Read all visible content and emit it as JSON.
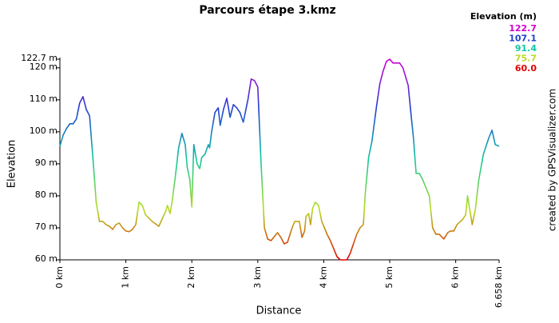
{
  "chart_data": {
    "type": "line",
    "title": "Parcours étape 3.kmz",
    "x_label": "Distance",
    "y_label": "Elevation",
    "credit": "created by GPSVisualizer.com",
    "xlim": [
      0,
      6.658
    ],
    "ylim": [
      60,
      122.7
    ],
    "xticks": [
      {
        "value": 0,
        "label": "0 km"
      },
      {
        "value": 1,
        "label": "1 km"
      },
      {
        "value": 2,
        "label": "2 km"
      },
      {
        "value": 3,
        "label": "3 km"
      },
      {
        "value": 4,
        "label": "4 km"
      },
      {
        "value": 5,
        "label": "5 km"
      },
      {
        "value": 6,
        "label": "6 km"
      },
      {
        "value": 6.658,
        "label": "6.658 km"
      }
    ],
    "yticks": [
      {
        "value": 60,
        "label": "60 m"
      },
      {
        "value": 70,
        "label": "70 m"
      },
      {
        "value": 80,
        "label": "80 m"
      },
      {
        "value": 90,
        "label": "90 m"
      },
      {
        "value": 100,
        "label": "100 m"
      },
      {
        "value": 110,
        "label": "110 m"
      },
      {
        "value": 120,
        "label": "120 m"
      },
      {
        "value": 122.7,
        "label": "122.7 m"
      }
    ],
    "legend": {
      "title": "Elevation (m)",
      "entries": [
        {
          "value": 122.7,
          "color": "#d000d0"
        },
        {
          "value": 107.1,
          "color": "#2040d0"
        },
        {
          "value": 91.4,
          "color": "#10c8a0"
        },
        {
          "value": 75.7,
          "color": "#b8dc20"
        },
        {
          "value": 60,
          "label": "60.0",
          "color": "#e00000"
        }
      ]
    },
    "x": [
      0,
      0.05,
      0.1,
      0.15,
      0.2,
      0.25,
      0.3,
      0.35,
      0.4,
      0.45,
      0.5,
      0.55,
      0.6,
      0.65,
      0.7,
      0.75,
      0.8,
      0.85,
      0.9,
      0.95,
      1.0,
      1.05,
      1.1,
      1.15,
      1.2,
      1.25,
      1.3,
      1.4,
      1.5,
      1.6,
      1.63,
      1.67,
      1.7,
      1.75,
      1.8,
      1.85,
      1.9,
      1.93,
      1.97,
      2.0,
      2.03,
      2.08,
      2.12,
      2.15,
      2.2,
      2.25,
      2.27,
      2.3,
      2.35,
      2.4,
      2.43,
      2.48,
      2.53,
      2.58,
      2.63,
      2.68,
      2.73,
      2.78,
      2.85,
      2.9,
      2.95,
      3.0,
      3.05,
      3.1,
      3.15,
      3.2,
      3.3,
      3.35,
      3.4,
      3.45,
      3.52,
      3.56,
      3.63,
      3.67,
      3.71,
      3.73,
      3.77,
      3.8,
      3.83,
      3.87,
      3.92,
      3.97,
      4.05,
      4.1,
      4.2,
      4.25,
      4.35,
      4.4,
      4.45,
      4.5,
      4.55,
      4.6,
      4.63,
      4.68,
      4.73,
      4.8,
      4.85,
      4.9,
      4.95,
      5.0,
      5.05,
      5.15,
      5.2,
      5.28,
      5.32,
      5.36,
      5.4,
      5.45,
      5.5,
      5.6,
      5.65,
      5.7,
      5.75,
      5.82,
      5.88,
      5.92,
      5.97,
      6.02,
      6.1,
      6.15,
      6.18,
      6.25,
      6.3,
      6.35,
      6.42,
      6.5,
      6.55,
      6.6,
      6.658
    ],
    "values": [
      95.5,
      99,
      101,
      102.5,
      102.5,
      104,
      109,
      111,
      107,
      105,
      92,
      78,
      72,
      72,
      71,
      70.5,
      69.5,
      71,
      71.5,
      70,
      69,
      68.8,
      69.5,
      71,
      78,
      77,
      74,
      72,
      70.5,
      75,
      77,
      74.5,
      78,
      86,
      95,
      99.5,
      96,
      89,
      85,
      76.5,
      96,
      90,
      88.5,
      92,
      93,
      96,
      95,
      100,
      106,
      107.5,
      102,
      107,
      110.5,
      104.5,
      108.5,
      107.5,
      106,
      103,
      110,
      116.5,
      116,
      114,
      90,
      70,
      66.5,
      66,
      68.5,
      67,
      65,
      65.5,
      70,
      72,
      72,
      67,
      69,
      73.5,
      74.5,
      71,
      76,
      78,
      77,
      72,
      68,
      66,
      61,
      60,
      60,
      62,
      65,
      68,
      70,
      71,
      81,
      92,
      97,
      108,
      115,
      119,
      122,
      122.7,
      121.5,
      121.5,
      120,
      114.5,
      106,
      98,
      87,
      87,
      85,
      80,
      70,
      68,
      68,
      66.5,
      68.5,
      69,
      69,
      71,
      72.5,
      74,
      80,
      71,
      76,
      85,
      93,
      98,
      100.5,
      96,
      95.5
    ]
  }
}
